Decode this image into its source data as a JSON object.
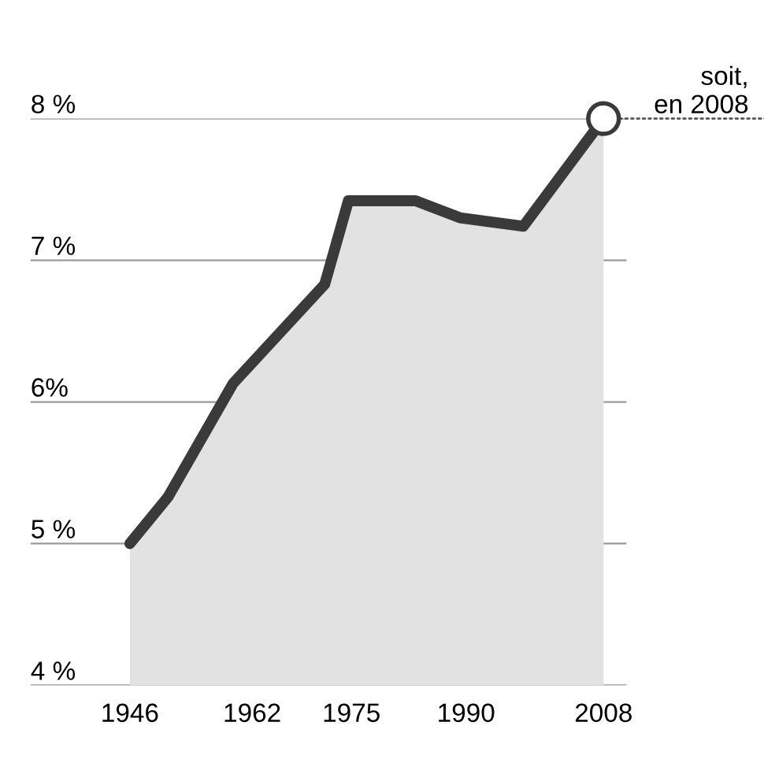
{
  "chart_data": {
    "type": "area",
    "x": [
      1946,
      1951,
      1959.5,
      1971.5,
      1974.6,
      1983.4,
      1989.2,
      1997.5,
      2008
    ],
    "series": [
      {
        "color": "#3a3a3a",
        "values": [
          5.0,
          5.33,
          6.13,
          6.83,
          7.42,
          7.42,
          7.3,
          7.24,
          8.0
        ]
      }
    ],
    "xlim": [
      1933,
      2011
    ],
    "xticks": [
      1946,
      1962,
      1975,
      1990,
      2008
    ],
    "ylim": [
      4,
      8
    ],
    "yticks": [
      {
        "value": 4,
        "label": "4 %"
      },
      {
        "value": 5,
        "label": "5 %"
      },
      {
        "value": 6,
        "label": "6%"
      },
      {
        "value": 7,
        "label": "7 %"
      },
      {
        "value": 8,
        "label": "8 %"
      }
    ],
    "grid": "y",
    "annotations": [
      {
        "text": "soit,\nen 2008",
        "x": 2008,
        "y": 8.0
      }
    ]
  }
}
